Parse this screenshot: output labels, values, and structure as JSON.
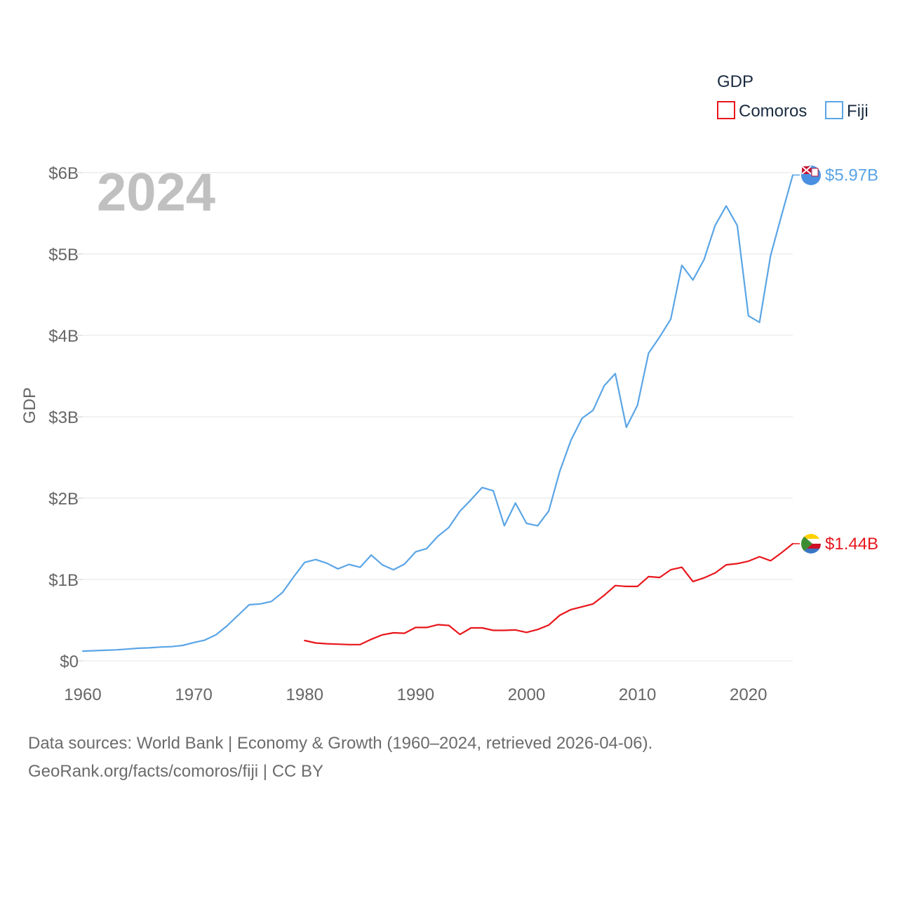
{
  "chart_data": {
    "type": "line",
    "watermark_year": "2024",
    "ylabel": "GDP",
    "xlabel": "",
    "legend_title": "GDP",
    "legend_position": "top-right",
    "x_ticks": [
      1960,
      1970,
      1980,
      1990,
      2000,
      2010,
      2020
    ],
    "y_ticks": [
      {
        "value": 0,
        "label": "$0"
      },
      {
        "value": 1,
        "label": "$1B"
      },
      {
        "value": 2,
        "label": "$2B"
      },
      {
        "value": 3,
        "label": "$3B"
      },
      {
        "value": 4,
        "label": "$4B"
      },
      {
        "value": 5,
        "label": "$5B"
      },
      {
        "value": 6,
        "label": "$6B"
      }
    ],
    "xlim": [
      1960,
      2024
    ],
    "ylim": [
      0,
      6
    ],
    "units": "billions USD",
    "grid": true,
    "series": [
      {
        "name": "Comoros",
        "color": "#e8161b",
        "end_label": "$1.44B",
        "flag_icon": "comoros-flag-icon",
        "x": [
          1980,
          1981,
          1982,
          1983,
          1984,
          1985,
          1986,
          1987,
          1988,
          1989,
          1990,
          1991,
          1992,
          1993,
          1994,
          1995,
          1996,
          1997,
          1998,
          1999,
          2000,
          2001,
          2002,
          2003,
          2004,
          2005,
          2006,
          2007,
          2008,
          2009,
          2010,
          2011,
          2012,
          2013,
          2014,
          2015,
          2016,
          2017,
          2018,
          2019,
          2020,
          2021,
          2022,
          2023,
          2024
        ],
        "values": [
          0.25,
          0.22,
          0.21,
          0.205,
          0.2,
          0.2,
          0.265,
          0.32,
          0.345,
          0.34,
          0.41,
          0.41,
          0.445,
          0.435,
          0.325,
          0.405,
          0.405,
          0.375,
          0.375,
          0.38,
          0.35,
          0.385,
          0.44,
          0.56,
          0.63,
          0.665,
          0.7,
          0.805,
          0.925,
          0.915,
          0.915,
          1.035,
          1.025,
          1.12,
          1.15,
          0.975,
          1.02,
          1.08,
          1.18,
          1.195,
          1.225,
          1.28,
          1.23,
          1.33,
          1.44
        ]
      },
      {
        "name": "Fiji",
        "color": "#5aa5e6",
        "end_label": "$5.97B",
        "flag_icon": "fiji-flag-icon",
        "x": [
          1960,
          1961,
          1962,
          1963,
          1964,
          1965,
          1966,
          1967,
          1968,
          1969,
          1970,
          1971,
          1972,
          1973,
          1974,
          1975,
          1976,
          1977,
          1978,
          1979,
          1980,
          1981,
          1982,
          1983,
          1984,
          1985,
          1986,
          1987,
          1988,
          1989,
          1990,
          1991,
          1992,
          1993,
          1994,
          1995,
          1996,
          1997,
          1998,
          1999,
          2000,
          2001,
          2002,
          2003,
          2004,
          2005,
          2006,
          2007,
          2008,
          2009,
          2010,
          2011,
          2012,
          2013,
          2014,
          2015,
          2016,
          2017,
          2018,
          2019,
          2020,
          2021,
          2022,
          2023,
          2024
        ],
        "values": [
          0.12,
          0.125,
          0.13,
          0.135,
          0.145,
          0.155,
          0.16,
          0.17,
          0.175,
          0.19,
          0.225,
          0.255,
          0.32,
          0.43,
          0.56,
          0.69,
          0.7,
          0.73,
          0.84,
          1.03,
          1.21,
          1.245,
          1.2,
          1.13,
          1.185,
          1.15,
          1.3,
          1.18,
          1.12,
          1.19,
          1.34,
          1.38,
          1.53,
          1.64,
          1.84,
          1.98,
          2.13,
          2.09,
          1.66,
          1.94,
          1.69,
          1.66,
          1.84,
          2.33,
          2.71,
          2.98,
          3.08,
          3.38,
          3.53,
          2.87,
          3.14,
          3.78,
          3.98,
          4.2,
          4.86,
          4.68,
          4.93,
          5.35,
          5.59,
          5.35,
          4.24,
          4.16,
          4.98,
          5.48,
          5.97
        ]
      }
    ]
  },
  "footer": {
    "line1": "Data sources: World Bank | Economy & Growth (1960–2024, retrieved 2026-04-06).",
    "line2": "GeoRank.org/facts/comoros/fiji | CC BY"
  }
}
